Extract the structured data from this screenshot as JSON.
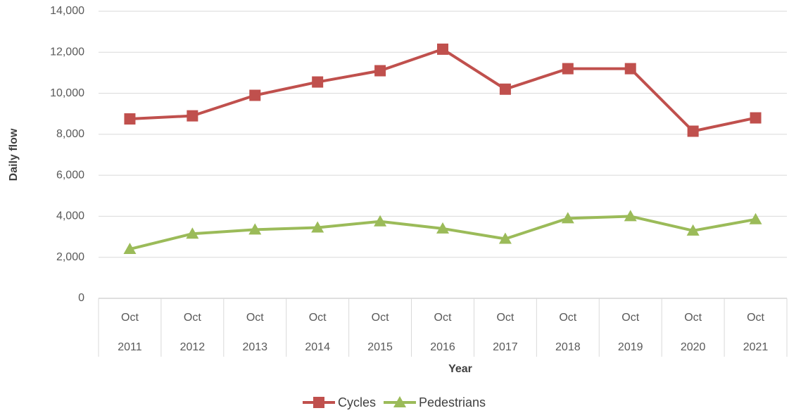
{
  "chart_data": {
    "type": "line",
    "categories": [
      [
        "Oct",
        "2011"
      ],
      [
        "Oct",
        "2012"
      ],
      [
        "Oct",
        "2013"
      ],
      [
        "Oct",
        "2014"
      ],
      [
        "Oct",
        "2015"
      ],
      [
        "Oct",
        "2016"
      ],
      [
        "Oct",
        "2017"
      ],
      [
        "Oct",
        "2018"
      ],
      [
        "Oct",
        "2019"
      ],
      [
        "Oct",
        "2020"
      ],
      [
        "Oct",
        "2021"
      ]
    ],
    "series": [
      {
        "name": "Cycles",
        "color": "#c0504d",
        "marker": "square",
        "values": [
          8750,
          8900,
          9900,
          10550,
          11100,
          12150,
          10200,
          11200,
          11200,
          8150,
          8800
        ]
      },
      {
        "name": "Pedestrians",
        "color": "#9bbb59",
        "marker": "triangle",
        "values": [
          2400,
          3150,
          3350,
          3450,
          3750,
          3400,
          2900,
          3900,
          4000,
          3300,
          3850
        ]
      }
    ],
    "x_label": "Year",
    "y_label": "Daily flow",
    "ylim": [
      0,
      14000
    ],
    "yticks": [
      0,
      {
        "value": 2000,
        "label": "2,000"
      },
      {
        "value": 4000,
        "label": "4,000"
      },
      {
        "value": 6000,
        "label": "6,000"
      },
      {
        "value": 8000,
        "label": "8,000"
      },
      {
        "value": 10000,
        "label": "10,000"
      },
      {
        "value": 12000,
        "label": "12,000"
      },
      {
        "value": 14000,
        "label": "14,000"
      }
    ],
    "grid": true,
    "legend": "bottom"
  }
}
